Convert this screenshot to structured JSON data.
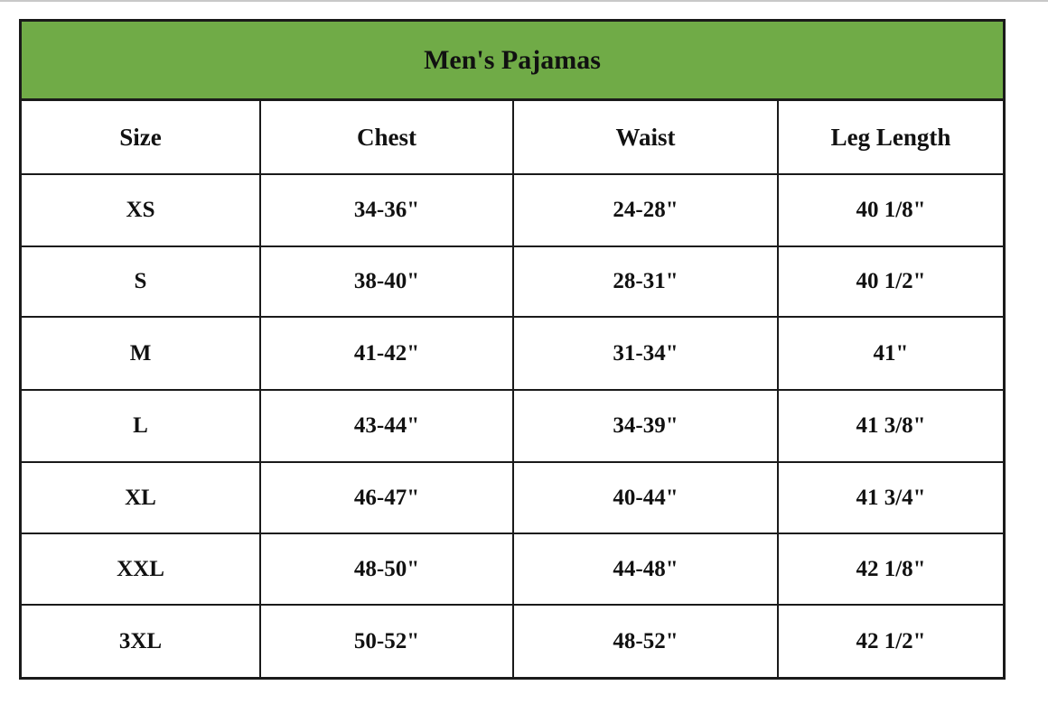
{
  "table": {
    "title": "Men's Pajamas",
    "header_color": "#70ab47",
    "columns": [
      "Size",
      "Chest",
      "Waist",
      "Leg Length"
    ],
    "rows": [
      [
        "XS",
        "34-36\"",
        "24-28\"",
        "40 1/8\""
      ],
      [
        "S",
        "38-40\"",
        "28-31\"",
        "40 1/2\""
      ],
      [
        "M",
        "41-42\"",
        "31-34\"",
        "41\""
      ],
      [
        "L",
        "43-44\"",
        "34-39\"",
        "41 3/8\""
      ],
      [
        "XL",
        "46-47\"",
        "40-44\"",
        "41 3/4\""
      ],
      [
        "XXL",
        "48-50\"",
        "44-48\"",
        "42 1/8\""
      ],
      [
        "3XL",
        "50-52\"",
        "48-52\"",
        "42 1/2\""
      ]
    ]
  }
}
